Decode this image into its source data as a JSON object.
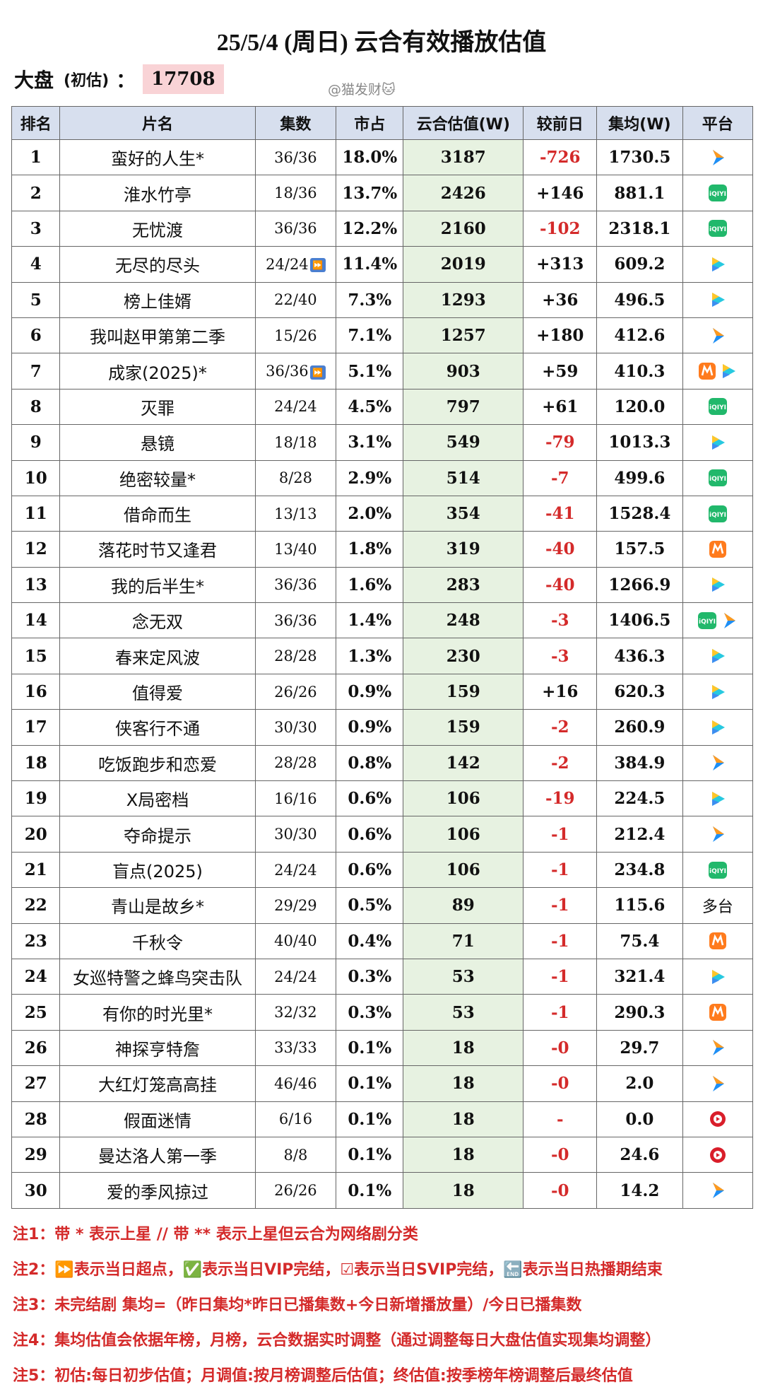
{
  "title": "25/5/4 (周日) 云合有效播放估值",
  "summary": {
    "label": "大盘",
    "paren": "(初估)",
    "colon": "：",
    "value": "17708"
  },
  "watermark": "@猫发财🐱",
  "headers": [
    "排名",
    "片名",
    "集数",
    "市占",
    "云合估值(W)",
    "较前日",
    "集均(W)",
    "平台"
  ],
  "colors": {
    "header_bg": "#d7dfee",
    "est_bg": "#e7f2e1",
    "neg": "#d42a2a",
    "highlight": "#f9d3d6"
  },
  "rows": [
    {
      "rank": "1",
      "name": "蛮好的人生*",
      "eps": "36/36",
      "share": "18.0%",
      "est": "3187",
      "chg": "-726",
      "avg": "1730.5",
      "plat": [
        "tencent"
      ]
    },
    {
      "rank": "2",
      "name": "淮水竹亭",
      "eps": "18/36",
      "share": "13.7%",
      "est": "2426",
      "chg": "+146",
      "avg": "881.1",
      "plat": [
        "iqiyi"
      ]
    },
    {
      "rank": "3",
      "name": "无忧渡",
      "eps": "36/36",
      "share": "12.2%",
      "est": "2160",
      "chg": "-102",
      "avg": "2318.1",
      "plat": [
        "iqiyi"
      ]
    },
    {
      "rank": "4",
      "name": "无尽的尽头",
      "eps": "24/24",
      "end": true,
      "share": "11.4%",
      "est": "2019",
      "chg": "+313",
      "avg": "609.2",
      "plat": [
        "youku"
      ]
    },
    {
      "rank": "5",
      "name": "榜上佳婿",
      "eps": "22/40",
      "share": "7.3%",
      "est": "1293",
      "chg": "+36",
      "avg": "496.5",
      "plat": [
        "youku"
      ]
    },
    {
      "rank": "6",
      "name": "我叫赵甲第第二季",
      "eps": "15/26",
      "share": "7.1%",
      "est": "1257",
      "chg": "+180",
      "avg": "412.6",
      "plat": [
        "tencent"
      ]
    },
    {
      "rank": "7",
      "name": "成家(2025)*",
      "eps": "36/36",
      "end": true,
      "share": "5.1%",
      "est": "903",
      "chg": "+59",
      "avg": "410.3",
      "plat": [
        "mango",
        "youku"
      ]
    },
    {
      "rank": "8",
      "name": "灭罪",
      "eps": "24/24",
      "share": "4.5%",
      "est": "797",
      "chg": "+61",
      "avg": "120.0",
      "plat": [
        "iqiyi"
      ]
    },
    {
      "rank": "9",
      "name": "悬镜",
      "eps": "18/18",
      "share": "3.1%",
      "est": "549",
      "chg": "-79",
      "avg": "1013.3",
      "plat": [
        "youku"
      ]
    },
    {
      "rank": "10",
      "name": "绝密较量*",
      "eps": "8/28",
      "share": "2.9%",
      "est": "514",
      "chg": "-7",
      "avg": "499.6",
      "plat": [
        "iqiyi"
      ]
    },
    {
      "rank": "11",
      "name": "借命而生",
      "eps": "13/13",
      "share": "2.0%",
      "est": "354",
      "chg": "-41",
      "avg": "1528.4",
      "plat": [
        "iqiyi"
      ]
    },
    {
      "rank": "12",
      "name": "落花时节又逢君",
      "eps": "13/40",
      "share": "1.8%",
      "est": "319",
      "chg": "-40",
      "avg": "157.5",
      "plat": [
        "mango"
      ]
    },
    {
      "rank": "13",
      "name": "我的后半生*",
      "eps": "36/36",
      "share": "1.6%",
      "est": "283",
      "chg": "-40",
      "avg": "1266.9",
      "plat": [
        "youku"
      ]
    },
    {
      "rank": "14",
      "name": "念无双",
      "eps": "36/36",
      "share": "1.4%",
      "est": "248",
      "chg": "-3",
      "avg": "1406.5",
      "plat": [
        "iqiyi",
        "tencent"
      ]
    },
    {
      "rank": "15",
      "name": "春来定风波",
      "eps": "28/28",
      "share": "1.3%",
      "est": "230",
      "chg": "-3",
      "avg": "436.3",
      "plat": [
        "youku"
      ]
    },
    {
      "rank": "16",
      "name": "值得爱",
      "eps": "26/26",
      "share": "0.9%",
      "est": "159",
      "chg": "+16",
      "avg": "620.3",
      "plat": [
        "youku"
      ]
    },
    {
      "rank": "17",
      "name": "侠客行不通",
      "eps": "30/30",
      "share": "0.9%",
      "est": "159",
      "chg": "-2",
      "avg": "260.9",
      "plat": [
        "youku"
      ]
    },
    {
      "rank": "18",
      "name": "吃饭跑步和恋爱",
      "eps": "28/28",
      "share": "0.8%",
      "est": "142",
      "chg": "-2",
      "avg": "384.9",
      "plat": [
        "tencent"
      ]
    },
    {
      "rank": "19",
      "name": "X局密档",
      "eps": "16/16",
      "share": "0.6%",
      "est": "106",
      "chg": "-19",
      "avg": "224.5",
      "plat": [
        "youku"
      ]
    },
    {
      "rank": "20",
      "name": "夺命提示",
      "eps": "30/30",
      "share": "0.6%",
      "est": "106",
      "chg": "-1",
      "avg": "212.4",
      "plat": [
        "tencent"
      ]
    },
    {
      "rank": "21",
      "name": "盲点(2025)",
      "eps": "24/24",
      "share": "0.6%",
      "est": "106",
      "chg": "-1",
      "avg": "234.8",
      "plat": [
        "iqiyi"
      ]
    },
    {
      "rank": "22",
      "name": "青山是故乡*",
      "eps": "29/29",
      "share": "0.5%",
      "est": "89",
      "chg": "-1",
      "avg": "115.6",
      "plat_text": "多台"
    },
    {
      "rank": "23",
      "name": "千秋令",
      "eps": "40/40",
      "share": "0.4%",
      "est": "71",
      "chg": "-1",
      "avg": "75.4",
      "plat": [
        "mango"
      ]
    },
    {
      "rank": "24",
      "name": "女巡特警之蜂鸟突击队",
      "eps": "24/24",
      "share": "0.3%",
      "est": "53",
      "chg": "-1",
      "avg": "321.4",
      "plat": [
        "youku"
      ]
    },
    {
      "rank": "25",
      "name": "有你的时光里*",
      "eps": "32/32",
      "share": "0.3%",
      "est": "53",
      "chg": "-1",
      "avg": "290.3",
      "plat": [
        "mango"
      ]
    },
    {
      "rank": "26",
      "name": "神探亨特詹",
      "eps": "33/33",
      "share": "0.1%",
      "est": "18",
      "chg": "-0",
      "avg": "29.7",
      "plat": [
        "tencent"
      ]
    },
    {
      "rank": "27",
      "name": "大红灯笼高高挂",
      "eps": "46/46",
      "share": "0.1%",
      "est": "18",
      "chg": "-0",
      "avg": "2.0",
      "plat": [
        "tencent"
      ]
    },
    {
      "rank": "28",
      "name": "假面迷情",
      "eps": "6/16",
      "share": "0.1%",
      "est": "18",
      "chg": "-",
      "avg": "0.0",
      "plat": [
        "redplay"
      ]
    },
    {
      "rank": "29",
      "name": "曼达洛人第一季",
      "eps": "8/8",
      "share": "0.1%",
      "est": "18",
      "chg": "-0",
      "avg": "24.6",
      "plat": [
        "redplay"
      ]
    },
    {
      "rank": "30",
      "name": "爱的季风掠过",
      "eps": "26/26",
      "share": "0.1%",
      "est": "18",
      "chg": "-0",
      "avg": "14.2",
      "plat": [
        "tencent"
      ]
    }
  ],
  "notes": [
    "注1：带 * 表示上星 // 带 ** 表示上星但云合为网络剧分类",
    "注2：⏩表示当日超点，✅表示当日VIP完结，☑表示当日SVIP完结，🔚表示当日热播期结束",
    "注3：未完结剧 集均=（昨日集均*昨日已播集数+今日新增播放量）/今日已播集数",
    "注4：集均估值会依据年榜，月榜，云合数据实时调整（通过调整每日大盘估值实现集均调整）",
    "注5：初估:每日初步估值；月调值:按月榜调整后估值；终估值:按季榜年榜调整后最终估值"
  ]
}
